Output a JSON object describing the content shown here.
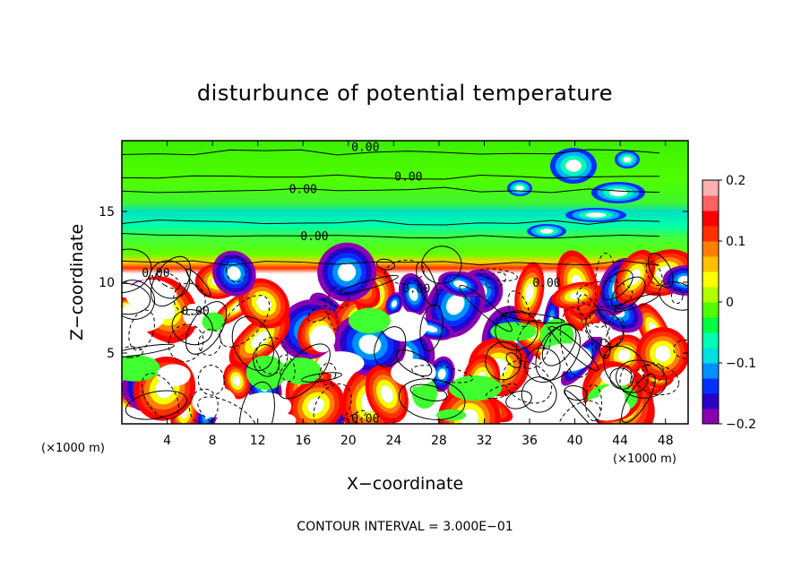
{
  "chart_data": {
    "type": "heatmap",
    "title": "disturbunce of potential temperature",
    "xlabel": "X−coordinate",
    "ylabel": "Z−coordinate",
    "x_unit": "(×1000 m)",
    "y_unit": "(×1000 m)",
    "xlim": [
      0,
      50
    ],
    "ylim": [
      0,
      20
    ],
    "x_ticks": [
      4,
      8,
      12,
      16,
      20,
      24,
      28,
      32,
      36,
      40,
      44,
      48
    ],
    "y_ticks": [
      5,
      10,
      15
    ],
    "colorbar": {
      "range": [
        -0.2,
        0.2
      ],
      "tick_values": [
        0.2,
        0.1,
        0,
        -0.1,
        -0.2
      ],
      "tick_labels": [
        "0.2",
        "0.1",
        "0",
        "−0.1",
        "−0.2"
      ],
      "colors": [
        "#8a00b0",
        "#2a00c8",
        "#0030ff",
        "#0090ff",
        "#00e0e0",
        "#00ffb0",
        "#00ff40",
        "#50ff00",
        "#b0ff00",
        "#ffff00",
        "#ffc000",
        "#ff8000",
        "#ff3000",
        "#ff0000",
        "#ff6060",
        "#ffb0b0"
      ]
    },
    "contour_labels": [
      {
        "text": "0.00",
        "x": 21.5,
        "z": 19.6
      },
      {
        "text": "0.00",
        "x": 25.3,
        "z": 17.5
      },
      {
        "text": "0.00",
        "x": 16.0,
        "z": 16.6
      },
      {
        "text": "0.00",
        "x": 17.0,
        "z": 13.3
      },
      {
        "text": "0.00",
        "x": 3.0,
        "z": 10.7
      },
      {
        "text": "0.00",
        "x": 26.0,
        "z": 9.6
      },
      {
        "text": "0.00",
        "x": 37.5,
        "z": 10.0
      },
      {
        "text": "0.00",
        "x": 6.5,
        "z": 8.0
      },
      {
        "text": "0.00",
        "x": 21.5,
        "z": 0.4
      }
    ],
    "footer": "CONTOUR INTERVAL = 3.000E−01"
  }
}
